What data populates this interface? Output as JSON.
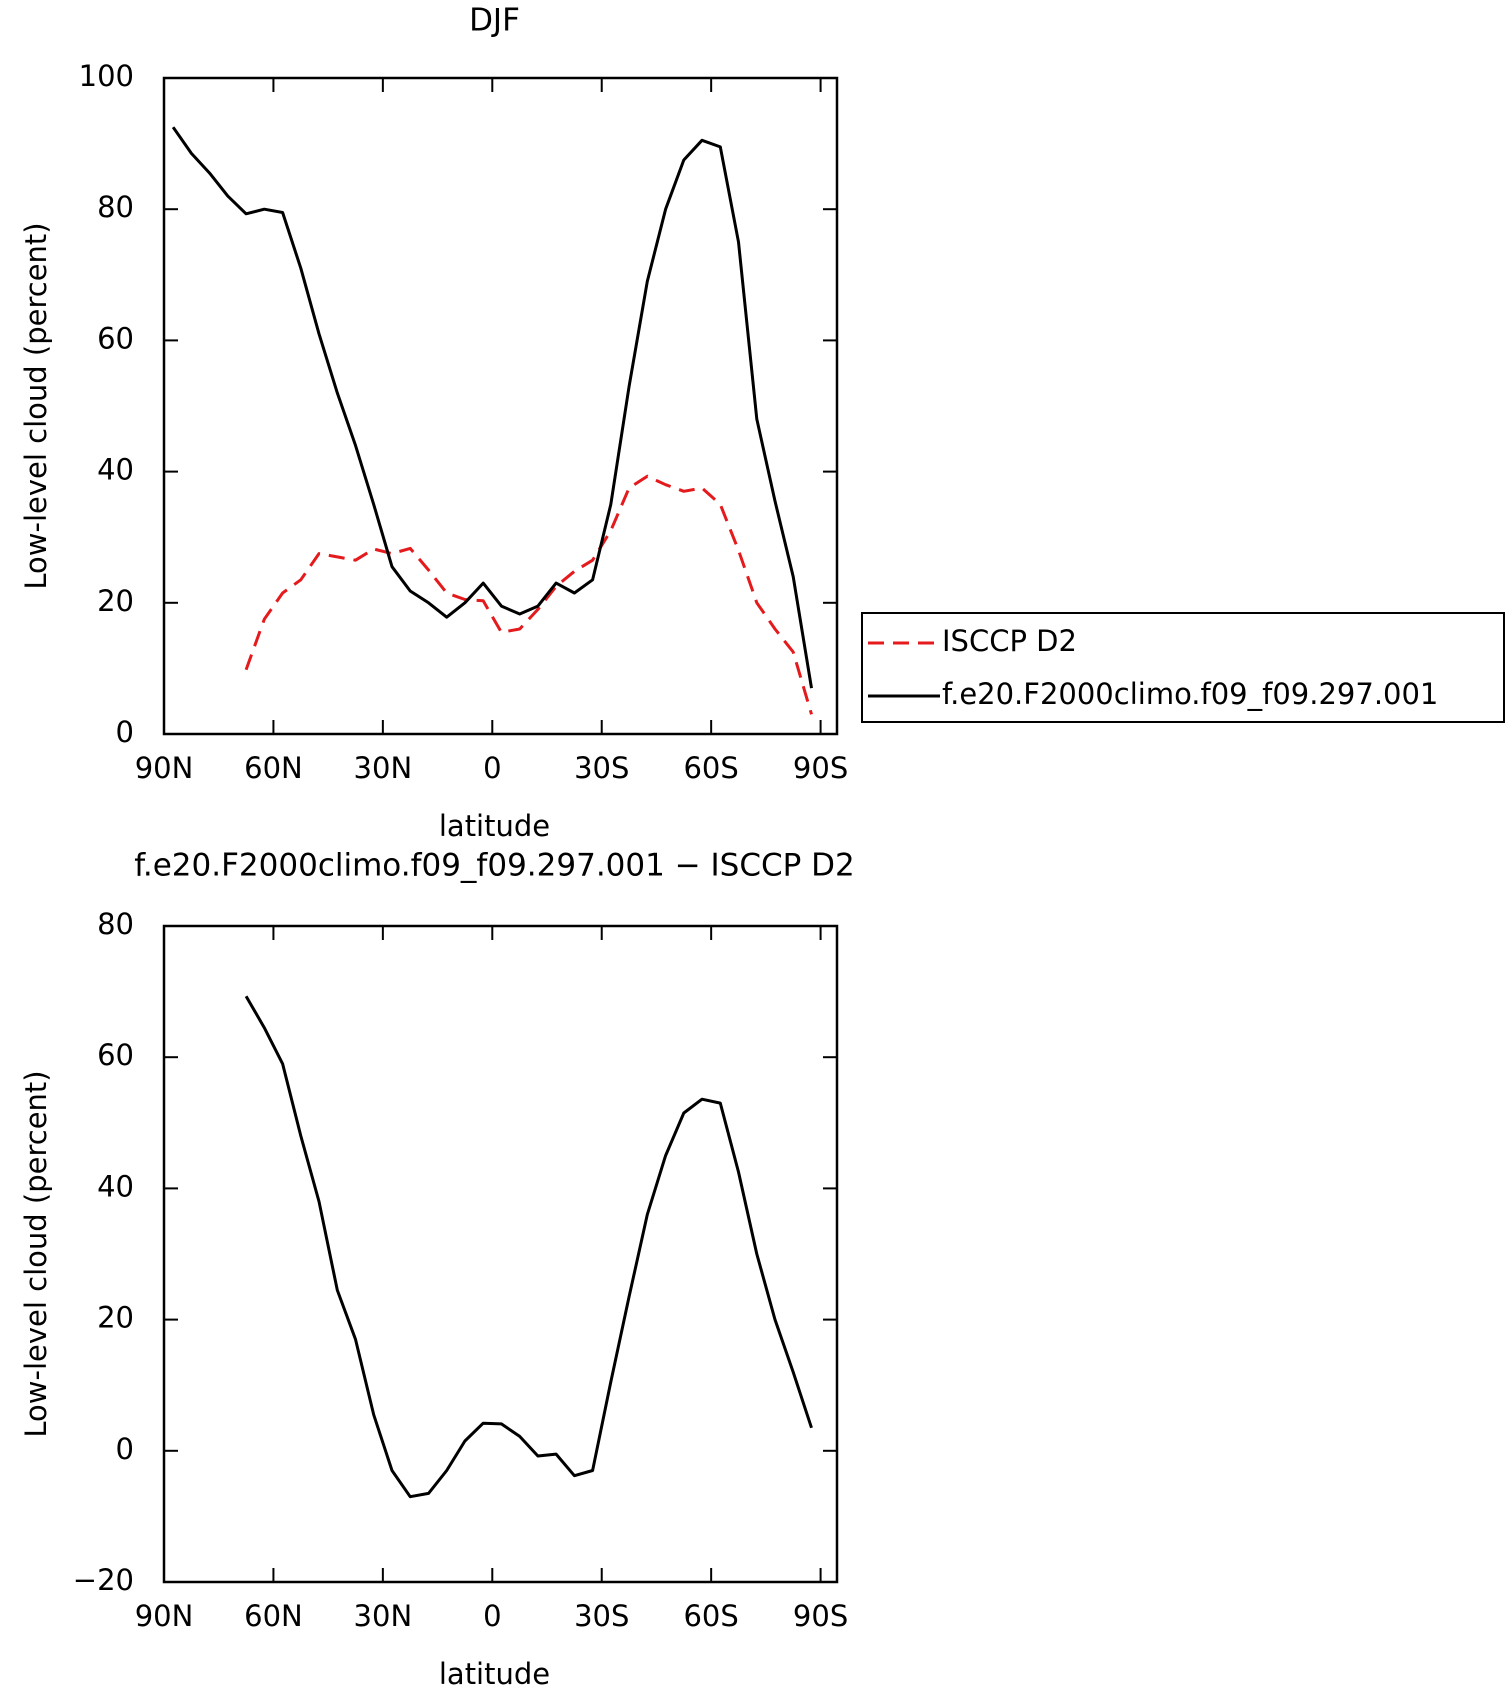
{
  "chart_data": [
    {
      "type": "line",
      "title": "DJF",
      "xlabel": "latitude",
      "ylabel": "Low-level cloud (percent)",
      "x": [
        87.5,
        82.5,
        77.5,
        72.5,
        67.5,
        62.5,
        57.5,
        52.5,
        47.5,
        42.5,
        37.5,
        32.5,
        27.5,
        22.5,
        17.5,
        12.5,
        7.5,
        2.5,
        -2.5,
        -7.5,
        -12.5,
        -17.5,
        -22.5,
        -27.5,
        -32.5,
        -37.5,
        -42.5,
        -47.5,
        -52.5,
        -57.5,
        -62.5,
        -67.5,
        -72.5,
        -77.5,
        -82.5,
        -87.5
      ],
      "series": [
        {
          "name": "ISCCP D2",
          "color": "#e41a1c",
          "line_style": "dashed",
          "values": [
            null,
            null,
            null,
            null,
            9.8,
            17.5,
            21.5,
            23.5,
            27.5,
            27,
            26.5,
            28.2,
            27.5,
            28.3,
            25,
            21.5,
            20.5,
            20.3,
            15.5,
            16,
            19,
            22.5,
            24.8,
            26.5,
            31,
            37.5,
            39.3,
            38,
            37,
            37.5,
            35,
            28,
            20,
            16,
            12.5,
            3
          ]
        },
        {
          "name": "f.e20.F2000climo.f09_f09.297.001",
          "color": "#000000",
          "line_style": "solid",
          "values": [
            92.5,
            88.5,
            85.5,
            82,
            79.3,
            80,
            79.5,
            71,
            61,
            52,
            44,
            35,
            25.5,
            21.8,
            20,
            17.8,
            20,
            23,
            19.5,
            18.3,
            19.5,
            23,
            21.5,
            23.5,
            35,
            53,
            69,
            80,
            87.5,
            90.5,
            89.5,
            75,
            48,
            35.5,
            24,
            7
          ]
        }
      ],
      "xlim": [
        90,
        -94.5
      ],
      "ylim": [
        0,
        100
      ],
      "xticks": [
        {
          "value": 90,
          "label": "90N"
        },
        {
          "value": 60,
          "label": "60N"
        },
        {
          "value": 30,
          "label": "30N"
        },
        0,
        {
          "value": -30,
          "label": "30S"
        },
        {
          "value": -60,
          "label": "60S"
        },
        {
          "value": -90,
          "label": "90S"
        }
      ],
      "yticks": [
        0,
        20,
        40,
        60,
        80,
        100
      ],
      "legend": "right"
    },
    {
      "type": "line",
      "title": "f.e20.F2000climo.f09_f09.297.001 − ISCCP D2",
      "xlabel": "latitude",
      "ylabel": "Low-level cloud (percent)",
      "x": [
        87.5,
        82.5,
        77.5,
        72.5,
        67.5,
        62.5,
        57.5,
        52.5,
        47.5,
        42.5,
        37.5,
        32.5,
        27.5,
        22.5,
        17.5,
        12.5,
        7.5,
        2.5,
        -2.5,
        -7.5,
        -12.5,
        -17.5,
        -22.5,
        -27.5,
        -32.5,
        -37.5,
        -42.5,
        -47.5,
        -52.5,
        -57.5,
        -62.5,
        -67.5,
        -72.5,
        -77.5,
        -82.5,
        -87.5
      ],
      "series": [
        {
          "color": "#000000",
          "line_style": "solid",
          "values": [
            null,
            null,
            null,
            null,
            69.3,
            64.5,
            59,
            48,
            38,
            24.5,
            17,
            5.5,
            -3,
            -7,
            -6.5,
            -3,
            1.5,
            4.2,
            4.1,
            2.2,
            -0.8,
            -0.5,
            -3.8,
            -3,
            10.5,
            23.5,
            36,
            45,
            51.5,
            53.6,
            53,
            42.5,
            30,
            20,
            12,
            3.5
          ]
        }
      ],
      "xlim": [
        90,
        -94.5
      ],
      "ylim": [
        -20,
        80
      ],
      "xticks": [
        {
          "value": 90,
          "label": "90N"
        },
        {
          "value": 60,
          "label": "60N"
        },
        {
          "value": 30,
          "label": "30N"
        },
        0,
        {
          "value": -30,
          "label": "30S"
        },
        {
          "value": -60,
          "label": "60S"
        },
        {
          "value": -90,
          "label": "90S"
        }
      ],
      "yticks": [
        {
          "value": -20,
          "label": "−20"
        },
        0,
        20,
        40,
        60,
        80
      ]
    }
  ]
}
